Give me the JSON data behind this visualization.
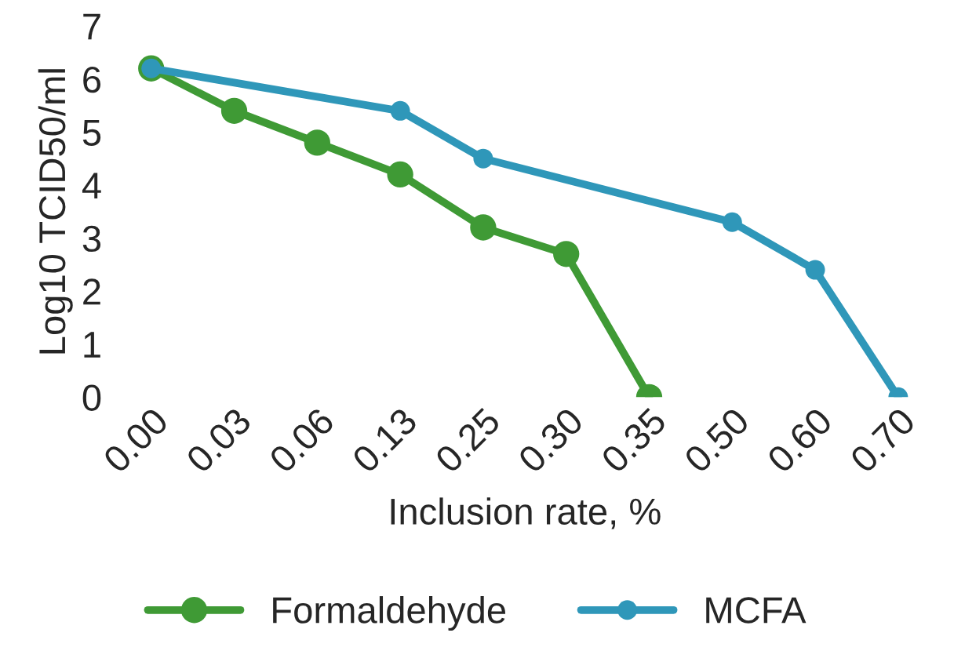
{
  "chart_data": {
    "type": "line",
    "xlabel": "Inclusion rate, %",
    "ylabel": "Log10 TCID50/ml",
    "categories": [
      "0.00",
      "0.03",
      "0.06",
      "0.13",
      "0.25",
      "0.30",
      "0.35",
      "0.50",
      "0.60",
      "0.70"
    ],
    "series": [
      {
        "name": "Formaldehyde",
        "color": "#3f9a35",
        "values": [
          6.2,
          5.4,
          4.8,
          4.2,
          3.2,
          2.7,
          0,
          null,
          null,
          null
        ]
      },
      {
        "name": "MCFA",
        "color": "#2f97b9",
        "values": [
          6.2,
          null,
          null,
          5.4,
          4.5,
          null,
          null,
          3.3,
          2.4,
          0
        ]
      }
    ],
    "ylim": [
      0,
      7
    ],
    "yticks": [
      0,
      1,
      2,
      3,
      4,
      5,
      6,
      7
    ],
    "grid": false,
    "legend": "bottom",
    "marker": "circle",
    "line_style": "solid"
  }
}
